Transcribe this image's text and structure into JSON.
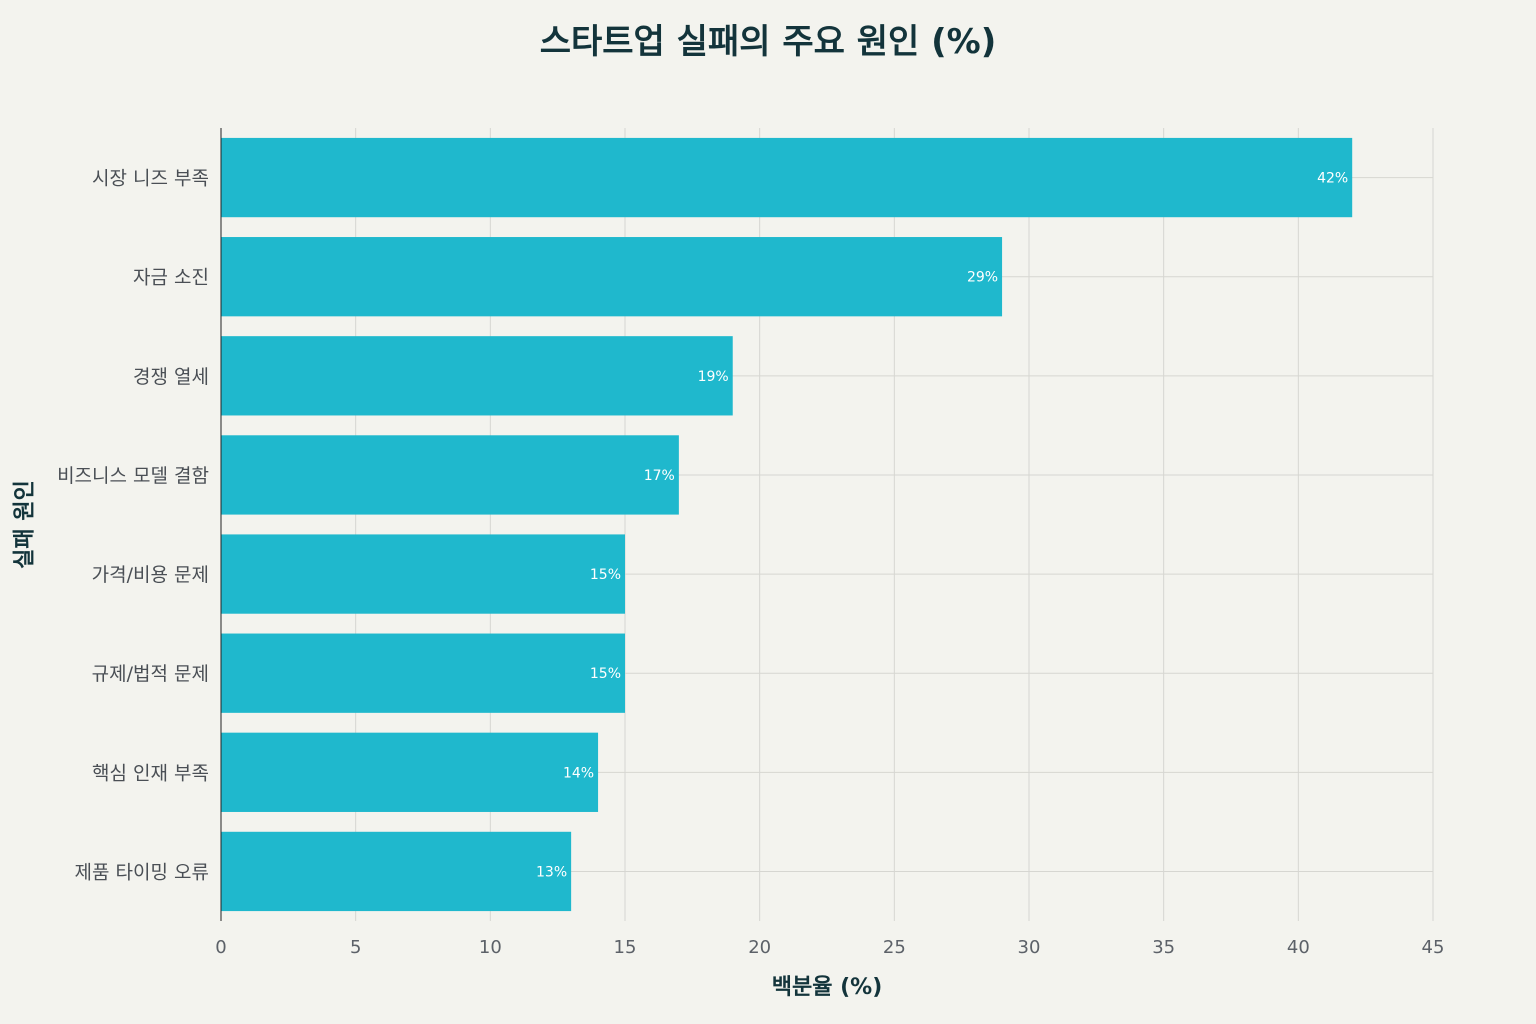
{
  "chart_data": {
    "type": "bar",
    "orientation": "horizontal",
    "title": "스타트업 실패의 주요 원인 (%)",
    "xlabel": "백분율 (%)",
    "ylabel": "실패 원인",
    "categories": [
      "시장 니즈 부족",
      "자금 소진",
      "경쟁 열세",
      "비즈니스 모델 결함",
      "가격/비용 문제",
      "규제/법적 문제",
      "핵심 인재 부족",
      "제품 타이밍 오류"
    ],
    "values": [
      42,
      29,
      19,
      17,
      15,
      15,
      14,
      13
    ],
    "data_labels": [
      "42%",
      "29%",
      "19%",
      "17%",
      "15%",
      "15%",
      "14%",
      "13%"
    ],
    "xlim": [
      0,
      45
    ],
    "xticks": [
      0,
      5,
      10,
      15,
      20,
      25,
      30,
      35,
      40,
      45
    ],
    "grid": true,
    "bar_color": "#1fb8cd",
    "legend": "none"
  }
}
